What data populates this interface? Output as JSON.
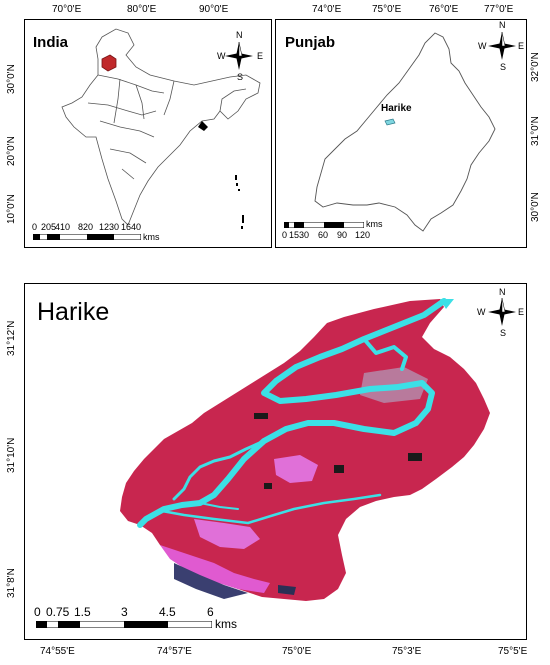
{
  "panel_india": {
    "title": "India",
    "top_ticks": [
      "70°0'E",
      "80°0'E",
      "90°0'E"
    ],
    "left_ticks": [
      "30°0'N",
      "20°0'N",
      "10°0'N"
    ],
    "scale_labels": [
      "0",
      "205",
      "410",
      "820",
      "1230",
      "1640"
    ],
    "scale_unit": "kms",
    "highlight_color": "#c0292b"
  },
  "panel_punjab": {
    "title": "Punjab",
    "top_ticks": [
      "74°0'E",
      "75°0'E",
      "76°0'E",
      "77°0'E"
    ],
    "right_ticks": [
      "32°0'N",
      "31°0'N",
      "30°0'N"
    ],
    "place_label": "Harike",
    "scale_labels": [
      "0",
      "15",
      "30",
      "60",
      "90",
      "120"
    ],
    "scale_unit": "kms"
  },
  "panel_harike": {
    "title": "Harike",
    "bottom_ticks": [
      "74°55'E",
      "74°57'E",
      "75°0'E",
      "75°3'E",
      "75°5'E"
    ],
    "left_ticks": [
      "31°12'N",
      "31°10'N",
      "31°8'N"
    ],
    "scale_labels": [
      "0",
      "0.75",
      "1.5",
      "3",
      "4.5",
      "6"
    ],
    "scale_unit": "kms",
    "colors": {
      "land": "#c8264f",
      "water": "#3ce0e6",
      "pink": "#e05ad0"
    }
  },
  "north_arrow": {
    "n": "N",
    "s": "S",
    "e": "E",
    "w": "W"
  }
}
